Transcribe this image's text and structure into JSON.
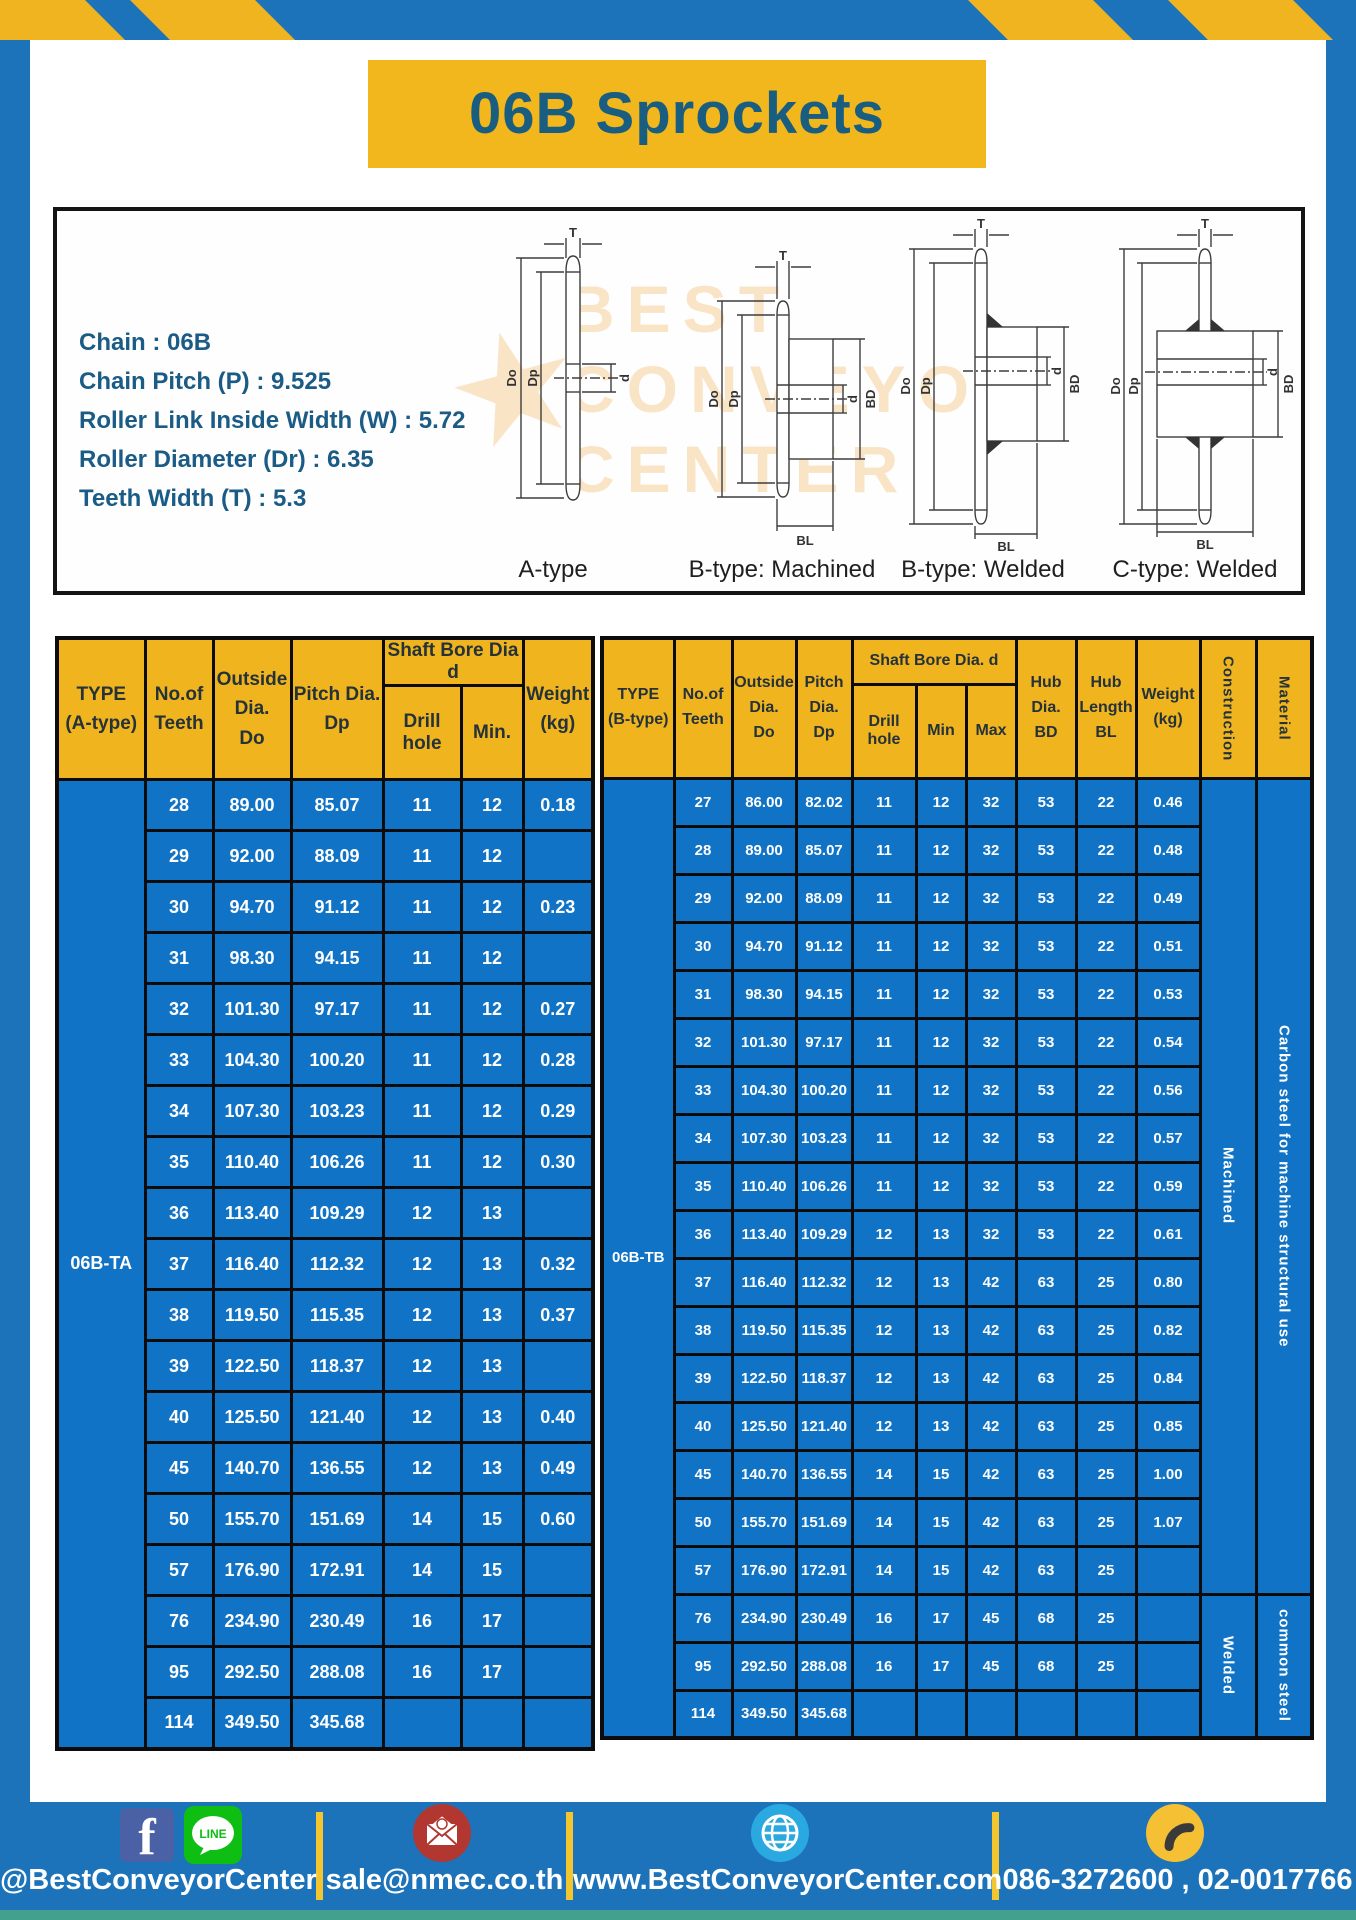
{
  "title": "06B Sprockets",
  "specs": [
    "Chain  : 06B",
    "Chain Pitch (P)  :  9.525",
    "Roller Link Inside Width (W)  :  5.72",
    "Roller Diameter (Dr)  : 6.35",
    "Teeth Width (T)  :  5.3"
  ],
  "diagram": {
    "watermark_lines": [
      "BEST",
      "CONVEYOR",
      "CENTER"
    ],
    "watermark_star": "★",
    "type_labels": [
      "A-type",
      "B-type: Machined",
      "B-type: Welded",
      "C-type: Welded"
    ],
    "dims": {
      "t": "T",
      "do": "Do",
      "dp": "Dp",
      "d": "d",
      "bd": "BD",
      "bl": "BL"
    }
  },
  "table_a": {
    "type_label": "06B-TA",
    "header": {
      "type1": "TYPE",
      "type2": "(A-type)",
      "teeth1": "No.of",
      "teeth2": "Teeth",
      "out1": "Outside",
      "out2": "Dia.",
      "out3": "Do",
      "pitch1": "Pitch Dia.",
      "pitch2": "Dp",
      "bore_group": "Shaft Bore Dia d",
      "drill": "Drill hole",
      "min": "Min.",
      "weight1": "Weight",
      "weight2": "(kg)"
    },
    "rows": [
      [
        "28",
        "89.00",
        "85.07",
        "11",
        "12",
        "0.18"
      ],
      [
        "29",
        "92.00",
        "88.09",
        "11",
        "12",
        ""
      ],
      [
        "30",
        "94.70",
        "91.12",
        "11",
        "12",
        "0.23"
      ],
      [
        "31",
        "98.30",
        "94.15",
        "11",
        "12",
        ""
      ],
      [
        "32",
        "101.30",
        "97.17",
        "11",
        "12",
        "0.27"
      ],
      [
        "33",
        "104.30",
        "100.20",
        "11",
        "12",
        "0.28"
      ],
      [
        "34",
        "107.30",
        "103.23",
        "11",
        "12",
        "0.29"
      ],
      [
        "35",
        "110.40",
        "106.26",
        "11",
        "12",
        "0.30"
      ],
      [
        "36",
        "113.40",
        "109.29",
        "12",
        "13",
        ""
      ],
      [
        "37",
        "116.40",
        "112.32",
        "12",
        "13",
        "0.32"
      ],
      [
        "38",
        "119.50",
        "115.35",
        "12",
        "13",
        "0.37"
      ],
      [
        "39",
        "122.50",
        "118.37",
        "12",
        "13",
        ""
      ],
      [
        "40",
        "125.50",
        "121.40",
        "12",
        "13",
        "0.40"
      ],
      [
        "45",
        "140.70",
        "136.55",
        "12",
        "13",
        "0.49"
      ],
      [
        "50",
        "155.70",
        "151.69",
        "14",
        "15",
        "0.60"
      ],
      [
        "57",
        "176.90",
        "172.91",
        "14",
        "15",
        ""
      ],
      [
        "76",
        "234.90",
        "230.49",
        "16",
        "17",
        ""
      ],
      [
        "95",
        "292.50",
        "288.08",
        "16",
        "17",
        ""
      ],
      [
        "114",
        "349.50",
        "345.68",
        "",
        "",
        ""
      ]
    ]
  },
  "table_b": {
    "type_label": "06B-TB",
    "header": {
      "type1": "TYPE",
      "type2": "(B-type)",
      "teeth1": "No.of",
      "teeth2": "Teeth",
      "out1": "Outside",
      "out2": "Dia.",
      "out3": "Do",
      "pitch1": "Pitch",
      "pitch2": "Dia.",
      "pitch3": "Dp",
      "bore_group": "Shaft Bore Dia. d",
      "drill": "Drill hole",
      "min": "Min",
      "max": "Max",
      "hub_dia1": "Hub",
      "hub_dia2": "Dia.",
      "hub_dia3": "BD",
      "hub_len1": "Hub",
      "hub_len2": "Length",
      "hub_len3": "BL",
      "weight1": "Weight",
      "weight2": "(kg)",
      "construction": "Construction",
      "material": "Material"
    },
    "construction_machined": "Machined",
    "construction_welded": "Welded",
    "material_machined": "Carbon steel for machine structural use",
    "material_welded": "common steel",
    "machined_span": 17,
    "welded_span": 3,
    "rows": [
      [
        "27",
        "86.00",
        "82.02",
        "11",
        "12",
        "32",
        "53",
        "22",
        "0.46"
      ],
      [
        "28",
        "89.00",
        "85.07",
        "11",
        "12",
        "32",
        "53",
        "22",
        "0.48"
      ],
      [
        "29",
        "92.00",
        "88.09",
        "11",
        "12",
        "32",
        "53",
        "22",
        "0.49"
      ],
      [
        "30",
        "94.70",
        "91.12",
        "11",
        "12",
        "32",
        "53",
        "22",
        "0.51"
      ],
      [
        "31",
        "98.30",
        "94.15",
        "11",
        "12",
        "32",
        "53",
        "22",
        "0.53"
      ],
      [
        "32",
        "101.30",
        "97.17",
        "11",
        "12",
        "32",
        "53",
        "22",
        "0.54"
      ],
      [
        "33",
        "104.30",
        "100.20",
        "11",
        "12",
        "32",
        "53",
        "22",
        "0.56"
      ],
      [
        "34",
        "107.30",
        "103.23",
        "11",
        "12",
        "32",
        "53",
        "22",
        "0.57"
      ],
      [
        "35",
        "110.40",
        "106.26",
        "11",
        "12",
        "32",
        "53",
        "22",
        "0.59"
      ],
      [
        "36",
        "113.40",
        "109.29",
        "12",
        "13",
        "32",
        "53",
        "22",
        "0.61"
      ],
      [
        "37",
        "116.40",
        "112.32",
        "12",
        "13",
        "42",
        "63",
        "25",
        "0.80"
      ],
      [
        "38",
        "119.50",
        "115.35",
        "12",
        "13",
        "42",
        "63",
        "25",
        "0.82"
      ],
      [
        "39",
        "122.50",
        "118.37",
        "12",
        "13",
        "42",
        "63",
        "25",
        "0.84"
      ],
      [
        "40",
        "125.50",
        "121.40",
        "12",
        "13",
        "42",
        "63",
        "25",
        "0.85"
      ],
      [
        "45",
        "140.70",
        "136.55",
        "14",
        "15",
        "42",
        "63",
        "25",
        "1.00"
      ],
      [
        "50",
        "155.70",
        "151.69",
        "14",
        "15",
        "42",
        "63",
        "25",
        "1.07"
      ],
      [
        "57",
        "176.90",
        "172.91",
        "14",
        "15",
        "42",
        "63",
        "25",
        ""
      ],
      [
        "76",
        "234.90",
        "230.49",
        "16",
        "17",
        "45",
        "68",
        "25",
        ""
      ],
      [
        "95",
        "292.50",
        "288.08",
        "16",
        "17",
        "45",
        "68",
        "25",
        ""
      ],
      [
        "114",
        "349.50",
        "345.68",
        "",
        "",
        "",
        "",
        "",
        ""
      ]
    ]
  },
  "footer": {
    "social_handle": "@BestConveyorCenter",
    "line_label": "LINE",
    "email": "sale@nmec.co.th",
    "website": "www.BestConveyorCenter.com",
    "phones": "086-3272600 , 02-0017766"
  },
  "colors": {
    "frame_blue": "#1c73ba",
    "cell_blue": "#1173c6",
    "header_yellow": "#f0b41f",
    "title_text": "#195e80",
    "teal_strip": "#43a08f"
  }
}
